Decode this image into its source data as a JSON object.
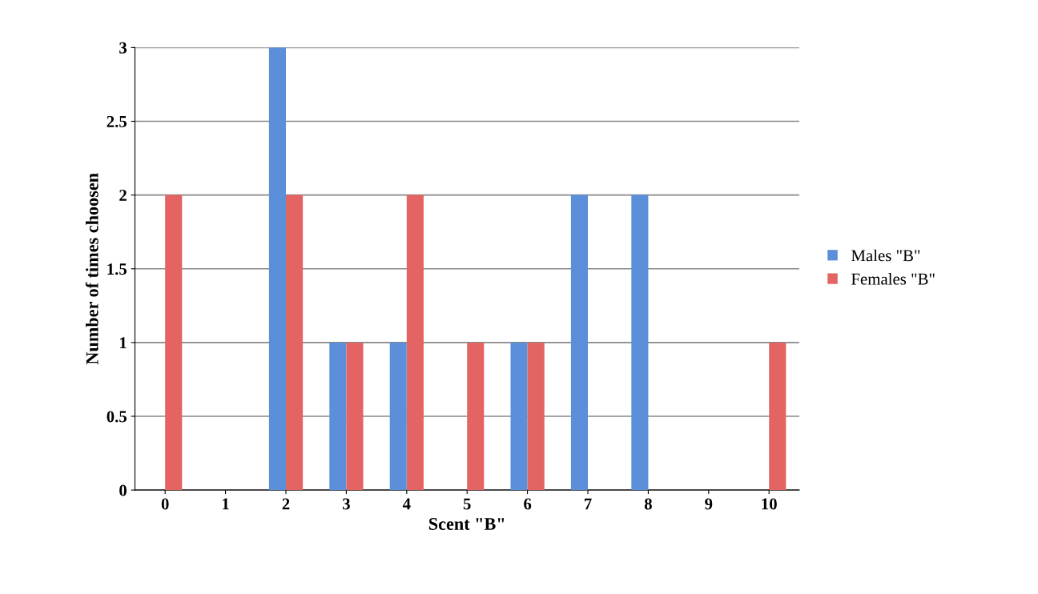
{
  "chart_data": {
    "type": "bar",
    "xlabel": "Scent \"B\"",
    "ylabel": "Number of times choosen",
    "categories": [
      "0",
      "1",
      "2",
      "3",
      "4",
      "5",
      "6",
      "7",
      "8",
      "9",
      "10"
    ],
    "series": [
      {
        "name": "Males \"B\"",
        "color": "#5b8fd9",
        "values": [
          0,
          0,
          3,
          1,
          1,
          0,
          1,
          2,
          2,
          0,
          0
        ]
      },
      {
        "name": "Females \"B\"",
        "color": "#e46464",
        "values": [
          2,
          0,
          2,
          1,
          2,
          1,
          1,
          0,
          0,
          0,
          1
        ]
      }
    ],
    "ylim": [
      0,
      3
    ],
    "yticks": [
      0,
      0.5,
      1,
      1.5,
      2,
      2.5,
      3
    ],
    "grid": "y",
    "legend": "right"
  }
}
